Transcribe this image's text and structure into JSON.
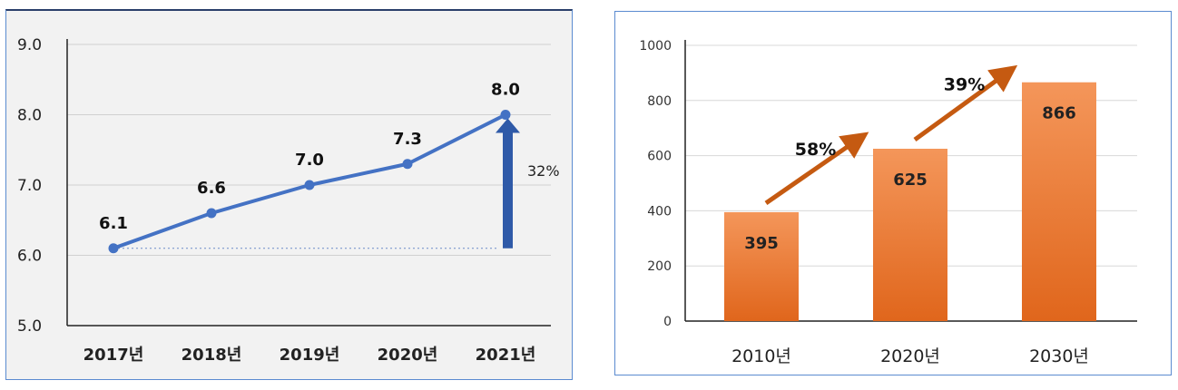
{
  "chart_data": [
    {
      "type": "line",
      "categories": [
        "2017년",
        "2018년",
        "2019년",
        "2020년",
        "2021년"
      ],
      "values": [
        6.1,
        6.6,
        7.0,
        7.3,
        8.0
      ],
      "data_labels": [
        "6.1",
        "6.6",
        "7.0",
        "7.3",
        "8.0"
      ],
      "y_tick_labels": [
        "5.0",
        "6.0",
        "7.0",
        "8.0",
        "9.0"
      ],
      "ylim": [
        5.0,
        9.0
      ],
      "grid": true,
      "annotation": {
        "text": "32%",
        "from": 6.1,
        "to": 8.0,
        "category": "2021년"
      },
      "colors": {
        "line": "#4472c4",
        "arrow": "#2f5aa8",
        "background": "#f2f2f2",
        "border": "#5b8bd0"
      }
    },
    {
      "type": "bar",
      "categories": [
        "2010년",
        "2020년",
        "2030년"
      ],
      "values": [
        395,
        625,
        866
      ],
      "data_labels": [
        "395",
        "625",
        "866"
      ],
      "y_tick_labels": [
        "0",
        "200",
        "400",
        "600",
        "800",
        "1000"
      ],
      "ylim": [
        0,
        1000
      ],
      "grid": true,
      "annotations": [
        {
          "text": "58%",
          "from": "2010년",
          "to": "2020년"
        },
        {
          "text": "39%",
          "from": "2020년",
          "to": "2030년"
        }
      ],
      "colors": {
        "bar_top": "#f4965a",
        "bar_bottom": "#e0661c",
        "arrow": "#c55a11",
        "border": "#5b8bd0"
      }
    }
  ]
}
